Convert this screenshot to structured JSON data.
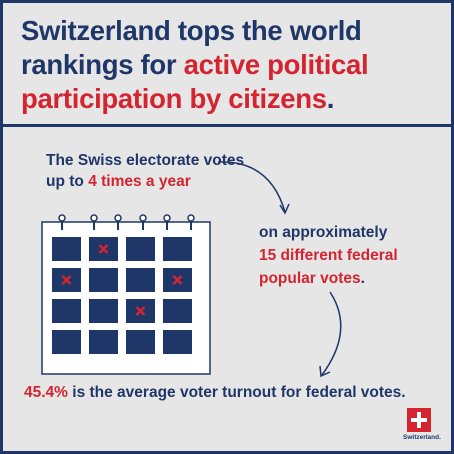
{
  "title": {
    "part1": "Switzerland tops the world rankings for ",
    "highlight": "active political participation by citizens",
    "part2": "."
  },
  "fact1": {
    "line1": "The Swiss electorate votes",
    "prefix": "up to ",
    "highlight": "4 times a year"
  },
  "fact2": {
    "line1": "on approximately",
    "highlight1": "15 different federal",
    "highlight2": "popular votes",
    "suffix": "."
  },
  "fact3": {
    "highlight": "45.4%",
    "rest": " is the average voter turnout for federal votes."
  },
  "logo": {
    "label": "Switzerland."
  },
  "calendar": {
    "rows": 4,
    "cols": 4,
    "marked_cells": [
      [
        0,
        1
      ],
      [
        1,
        0
      ],
      [
        1,
        3
      ],
      [
        2,
        2
      ]
    ]
  },
  "colors": {
    "navy": "#1f3768",
    "red": "#d3242f",
    "background": "#e6e6e7"
  }
}
